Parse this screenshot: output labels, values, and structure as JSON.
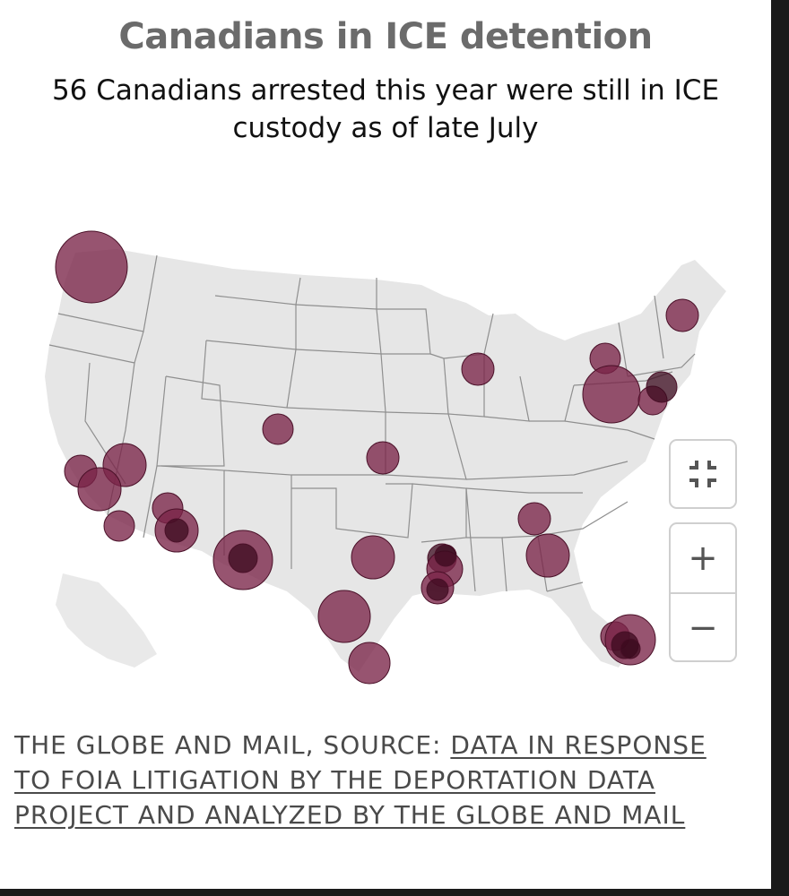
{
  "title": "Canadians in ICE detention",
  "subtitle": "56 Canadians arrested this year were still in ICE custody as of late July",
  "source": {
    "prefix": "THE GLOBE AND MAIL, SOURCE: ",
    "link_text": "DATA IN RESPONSE TO FOIA LITIGATION BY THE DEPORTATION DATA PROJECT AND ANALYZED BY THE GLOBE AND MAIL"
  },
  "controls": {
    "reset_icon": "shrink-arrows-icon",
    "zoom_in_label": "+",
    "zoom_out_label": "−"
  },
  "colors": {
    "bubble_fill": "#7a2448",
    "bubble_dark": "#3b0a1e",
    "land": "#e6e6e6",
    "state_border": "#8f8f8f",
    "title": "#6b6b6b"
  },
  "map": {
    "region": "contiguous United States",
    "bubble_count": 32
  }
}
